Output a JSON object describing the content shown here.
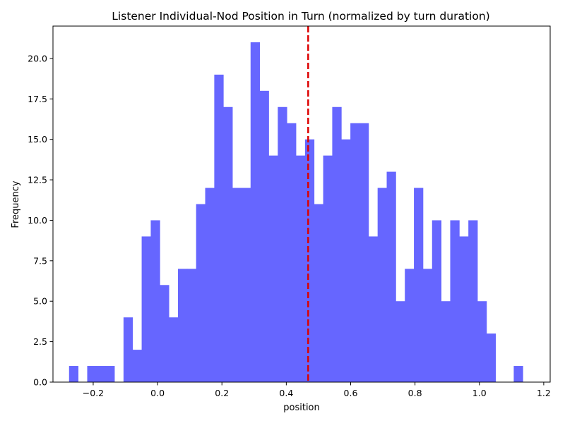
{
  "chart_data": {
    "type": "bar",
    "title": "Listener Individual-Nod Position in Turn (normalized by turn duration)",
    "xlabel": "position",
    "ylabel": "Frequency",
    "xlim": [
      -0.325,
      1.22
    ],
    "ylim": [
      0,
      22
    ],
    "bin_width": 0.0282,
    "bin_start": -0.275,
    "values": [
      1,
      0,
      1,
      1,
      1,
      0,
      4,
      2,
      9,
      10,
      6,
      4,
      7,
      7,
      11,
      12,
      19,
      17,
      12,
      12,
      21,
      18,
      14,
      17,
      16,
      14,
      15,
      11,
      14,
      17,
      15,
      16,
      16,
      9,
      12,
      13,
      5,
      7,
      12,
      7,
      10,
      5,
      10,
      9,
      10,
      5,
      3,
      0,
      0,
      1
    ],
    "mean_line": 0.468,
    "bar_color": "#6666ff",
    "mean_line_color": "#dd0000",
    "x_ticks": [
      -0.2,
      0.0,
      0.2,
      0.4,
      0.6,
      0.8,
      1.0,
      1.2
    ],
    "x_tick_labels": [
      "−0.2",
      "0.0",
      "0.2",
      "0.4",
      "0.6",
      "0.8",
      "1.0",
      "1.2"
    ],
    "y_ticks": [
      0,
      2.5,
      5,
      7.5,
      10,
      12.5,
      15,
      17.5,
      20
    ],
    "y_tick_labels": [
      "0.0",
      "2.5",
      "5.0",
      "7.5",
      "10.0",
      "12.5",
      "15.0",
      "17.5",
      "20.0"
    ],
    "grid": false,
    "legend": "none"
  }
}
